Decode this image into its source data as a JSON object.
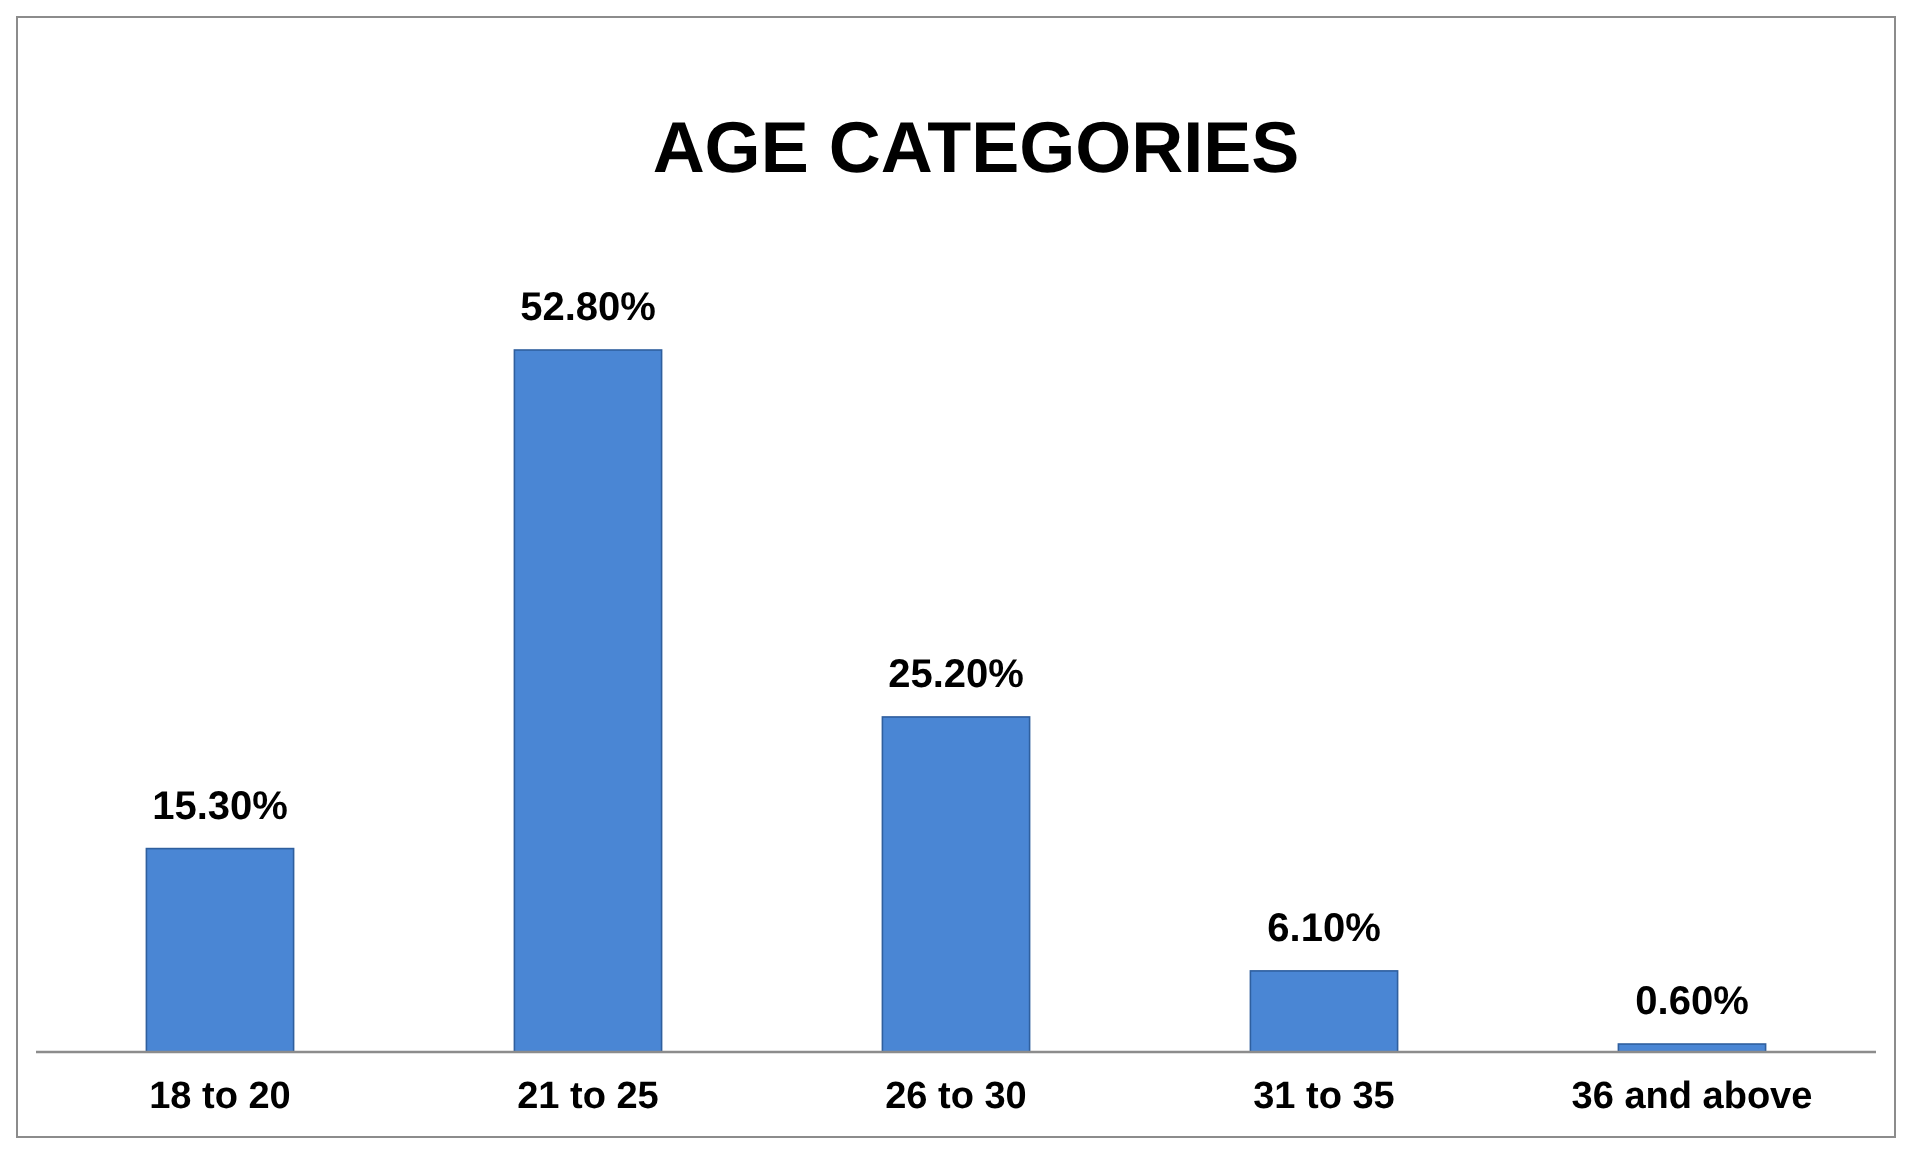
{
  "chart_data": {
    "type": "bar",
    "title": "AGE CATEGORIES",
    "categories": [
      "18 to 20",
      "21 to 25",
      "26 to 30",
      "31 to 35",
      "36 and above"
    ],
    "values": [
      15.3,
      52.8,
      25.2,
      6.1,
      0.6
    ],
    "value_labels": [
      "15.30%",
      "52.80%",
      "25.20%",
      "6.10%",
      "0.60%"
    ],
    "color": "#4a86d4"
  }
}
